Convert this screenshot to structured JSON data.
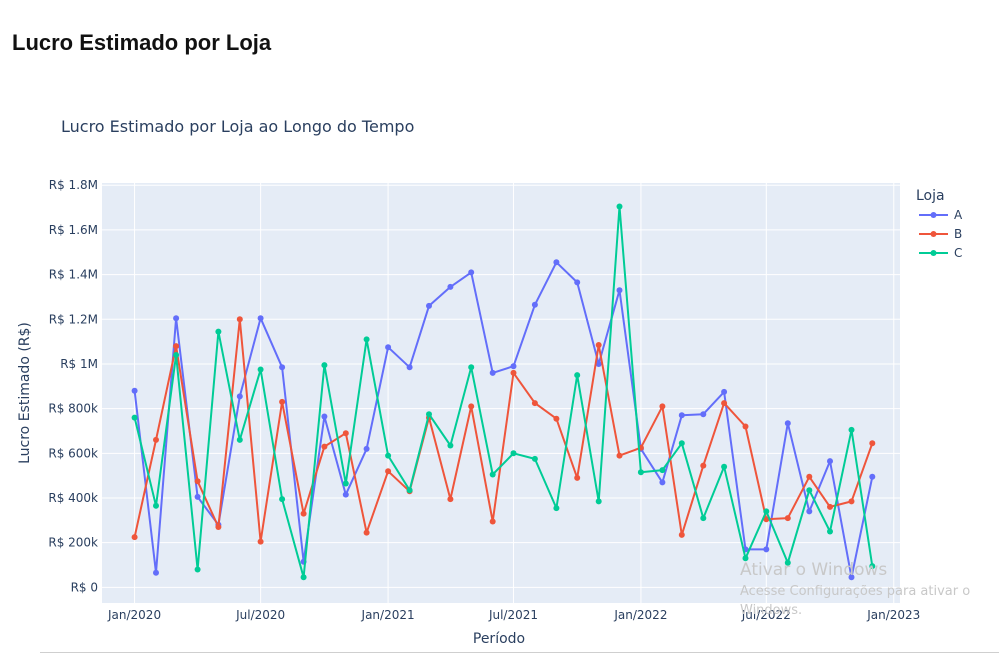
{
  "page": {
    "heading": "Lucro Estimado por Loja"
  },
  "watermark": {
    "line1": "Ativar o Windows",
    "line2": "Acesse Configurações para ativar o",
    "line3": "Windows."
  },
  "chart_data": {
    "type": "line",
    "title": "Lucro Estimado por Loja ao Longo do Tempo",
    "xlabel": "Período",
    "ylabel": "Lucro Estimado (R$)",
    "legend_title": "Loja",
    "legend_placement": "right",
    "grid": true,
    "x_start": "2020-01",
    "x_tick_labels": [
      "Jan/2020",
      "Jul/2020",
      "Jan/2021",
      "Jul/2021",
      "Jan/2022",
      "Jul/2022",
      "Jan/2023"
    ],
    "x_range": [
      "2019-11-15",
      "2023-01-10"
    ],
    "y_tick_values": [
      0,
      200000,
      400000,
      600000,
      800000,
      1000000,
      1200000,
      1400000,
      1600000,
      1800000
    ],
    "y_tick_labels": [
      "R$ 0",
      "R$ 200k",
      "R$ 400k",
      "R$ 600k",
      "R$ 800k",
      "R$ 1M",
      "R$ 1.2M",
      "R$ 1.4M",
      "R$ 1.6M",
      "R$ 1.8M"
    ],
    "ylim": [
      -70000,
      1810000
    ],
    "plot_background": "#e5ecf6",
    "series": [
      {
        "name": "A",
        "color": "#636efa",
        "values": [
          880000,
          65000,
          1205000,
          405000,
          280000,
          855000,
          1205000,
          985000,
          115000,
          765000,
          415000,
          620000,
          1075000,
          985000,
          1260000,
          1345000,
          1410000,
          960000,
          990000,
          1265000,
          1455000,
          1365000,
          1000000,
          1330000,
          620000,
          470000,
          770000,
          775000,
          875000,
          170000,
          170000,
          735000,
          340000,
          565000,
          45000,
          495000
        ]
      },
      {
        "name": "B",
        "color": "#ef553b",
        "values": [
          225000,
          660000,
          1080000,
          475000,
          270000,
          1200000,
          205000,
          830000,
          330000,
          630000,
          690000,
          245000,
          520000,
          430000,
          760000,
          395000,
          810000,
          295000,
          960000,
          825000,
          755000,
          490000,
          1085000,
          590000,
          625000,
          810000,
          235000,
          545000,
          825000,
          720000,
          305000,
          310000,
          495000,
          360000,
          385000,
          645000
        ]
      },
      {
        "name": "C",
        "color": "#00cc96",
        "values": [
          760000,
          365000,
          1040000,
          80000,
          1145000,
          660000,
          975000,
          395000,
          45000,
          995000,
          465000,
          1110000,
          590000,
          435000,
          775000,
          635000,
          985000,
          505000,
          600000,
          575000,
          355000,
          950000,
          385000,
          1705000,
          515000,
          525000,
          645000,
          310000,
          540000,
          130000,
          340000,
          110000,
          435000,
          250000,
          705000,
          95000
        ]
      }
    ]
  }
}
